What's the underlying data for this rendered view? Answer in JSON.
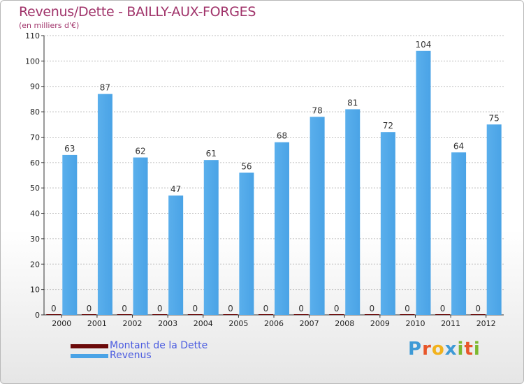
{
  "chart_data": {
    "type": "bar",
    "title": "Revenus/Dette - BAILLY-AUX-FORGES",
    "subtitle": "(en milliers d'€)",
    "categories": [
      "2000",
      "2001",
      "2002",
      "2003",
      "2004",
      "2005",
      "2006",
      "2007",
      "2008",
      "2009",
      "2010",
      "2011",
      "2012"
    ],
    "series": [
      {
        "name": "Montant de la Dette",
        "color": "#6b0a0a",
        "values": [
          0,
          0,
          0,
          0,
          0,
          0,
          0,
          0,
          0,
          0,
          0,
          0,
          0
        ]
      },
      {
        "name": "Revenus",
        "color": "#4aa3e6",
        "values": [
          63,
          87,
          62,
          47,
          61,
          56,
          68,
          78,
          81,
          72,
          104,
          64,
          75
        ]
      }
    ],
    "ylim": [
      0,
      110
    ],
    "yticks": [
      0,
      10,
      20,
      30,
      40,
      50,
      60,
      70,
      80,
      90,
      100,
      110
    ],
    "grid": true,
    "legend_position": "bottom-left"
  },
  "logo": {
    "text": "Proxiti",
    "letters": [
      "P",
      "r",
      "o",
      "x",
      "i",
      "t",
      "i"
    ],
    "colors": [
      "#3e9ad6",
      "#e8562a",
      "#f2b21d",
      "#3e9ad6",
      "#7cb82f",
      "#e8562a",
      "#7cb82f"
    ]
  }
}
